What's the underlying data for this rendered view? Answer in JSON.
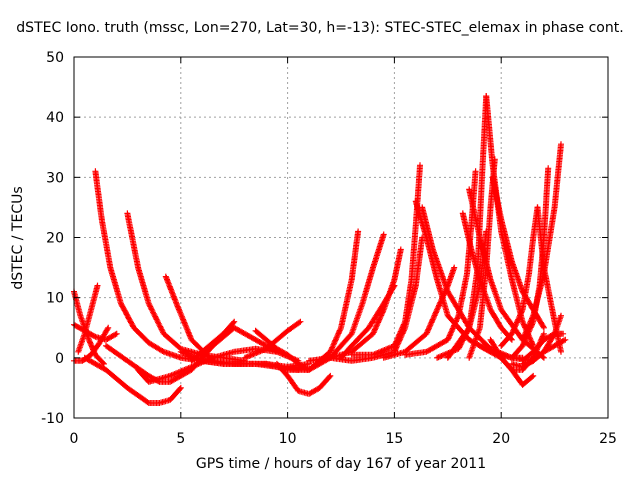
{
  "chart_data": {
    "type": "scatter",
    "title": "dSTEC Iono. truth (mssc, Lon=270, Lat=30, h=-13): STEC-STEC_elemax in phase cont.",
    "xlabel": "GPS time / hours of day 167 of year 2011",
    "ylabel": "dSTEC  / TECUs",
    "xlim": [
      0,
      25
    ],
    "ylim": [
      -10,
      50
    ],
    "xticks": [
      0,
      5,
      10,
      15,
      20,
      25
    ],
    "yticks": [
      -10,
      0,
      10,
      20,
      30,
      40,
      50
    ],
    "grid": true,
    "marker": "+",
    "color": "#ff0000",
    "series": [
      {
        "x": [
          0.0,
          0.3,
          0.7,
          1.0,
          1.4
        ],
        "y": [
          11,
          7,
          3,
          0.5,
          -1
        ]
      },
      {
        "x": [
          0.0,
          0.5,
          1.0,
          1.5,
          2.0
        ],
        "y": [
          5.5,
          4.5,
          3.5,
          3,
          4
        ]
      },
      {
        "x": [
          0.2,
          0.5,
          0.8,
          1.1
        ],
        "y": [
          1,
          4,
          8,
          12
        ]
      },
      {
        "x": [
          0.0,
          0.4,
          0.8,
          1.2,
          1.6
        ],
        "y": [
          -0.5,
          -0.5,
          0.5,
          2.5,
          5
        ]
      },
      {
        "x": [
          1.0,
          1.3,
          1.7,
          2.2,
          2.8,
          3.5,
          4.2,
          5.0,
          6.0,
          7.0,
          8.0,
          9.0
        ],
        "y": [
          31,
          23,
          15,
          9,
          5,
          2.5,
          1,
          0,
          -0.5,
          -1,
          -1,
          -1
        ]
      },
      {
        "x": [
          2.5,
          3.0,
          3.5,
          4.2,
          5.0,
          6.0,
          7.0,
          8.0
        ],
        "y": [
          24,
          15,
          9,
          4,
          1.5,
          0.5,
          0,
          -0.5
        ]
      },
      {
        "x": [
          0.5,
          1.5,
          2.5,
          3.5,
          4.0,
          4.5,
          5.0
        ],
        "y": [
          0,
          -2,
          -5,
          -7.5,
          -7.5,
          -7,
          -5
        ]
      },
      {
        "x": [
          1.5,
          2.5,
          3.5,
          4.0,
          4.5,
          5.5,
          6.5,
          7.5
        ],
        "y": [
          2,
          -0.5,
          -3,
          -4,
          -4,
          -2,
          2,
          6
        ]
      },
      {
        "x": [
          3.0,
          3.5,
          4.5,
          5.5,
          6.5,
          7.5,
          8.5,
          9.5
        ],
        "y": [
          -2,
          -4,
          -3,
          -1.5,
          0,
          1,
          1.5,
          1
        ]
      },
      {
        "x": [
          4.3,
          4.8,
          5.5,
          6.5,
          7.5,
          8.5,
          9.5,
          10.5
        ],
        "y": [
          13.5,
          9,
          3,
          -0.5,
          -1,
          -1,
          -1.5,
          -2
        ]
      },
      {
        "x": [
          5.0,
          6.0,
          7.0,
          8.0,
          9.0,
          10.0,
          11.0
        ],
        "y": [
          1,
          -0.5,
          -1,
          -1,
          -1,
          -1.5,
          -1
        ]
      },
      {
        "x": [
          5.5,
          6.0,
          6.5,
          7.0
        ],
        "y": [
          -0.5,
          1,
          2.5,
          4
        ]
      },
      {
        "x": [
          6.5,
          7.0,
          7.5,
          8.5,
          9.5,
          10.5
        ],
        "y": [
          2,
          3.5,
          5,
          3,
          1,
          -0.5
        ]
      },
      {
        "x": [
          8.5,
          9.0,
          9.5,
          10.0,
          10.5,
          11.0
        ],
        "y": [
          4.5,
          3,
          1.5,
          0.5,
          -1,
          -2
        ]
      },
      {
        "x": [
          8.0,
          9.0,
          9.5,
          10.0,
          10.6
        ],
        "y": [
          0,
          1.5,
          3,
          4.5,
          6
        ]
      },
      {
        "x": [
          9.5,
          10.0,
          10.5,
          11.0,
          11.5,
          12.0
        ],
        "y": [
          -1,
          -3,
          -5.5,
          -6,
          -5,
          -3
        ]
      },
      {
        "x": [
          9.0,
          10.0,
          11.0,
          12.0,
          12.5,
          13.0,
          13.3
        ],
        "y": [
          -1,
          -2,
          -2,
          1,
          5,
          13,
          21
        ]
      },
      {
        "x": [
          10.0,
          11.0,
          12.0,
          13.0,
          13.5,
          14.0,
          14.5
        ],
        "y": [
          -1.5,
          -2,
          0,
          4,
          9,
          15,
          20.5
        ]
      },
      {
        "x": [
          11.0,
          12.0,
          13.0,
          14.0,
          14.5,
          15.0,
          15.3
        ],
        "y": [
          -0.5,
          0,
          1,
          4,
          8,
          13,
          18
        ]
      },
      {
        "x": [
          12.0,
          13.0,
          14.0,
          15.0,
          15.5,
          16.0,
          16.3
        ],
        "y": [
          0,
          -0.5,
          0,
          1,
          5,
          12,
          20
        ]
      },
      {
        "x": [
          12.5,
          13.0,
          13.8,
          14.5,
          15.0
        ],
        "y": [
          0,
          2,
          5,
          9,
          12
        ]
      },
      {
        "x": [
          13.0,
          14.0,
          15.0,
          15.5,
          15.8,
          16.0,
          16.2
        ],
        "y": [
          0.5,
          0.5,
          2,
          6,
          13,
          22,
          32
        ]
      },
      {
        "x": [
          14.5,
          15.5,
          16.5,
          17.0,
          17.5,
          17.8
        ],
        "y": [
          0,
          1,
          4,
          8,
          12,
          15
        ]
      },
      {
        "x": [
          16.0,
          16.5,
          17.0,
          17.5,
          18.5,
          19.5,
          20.5,
          21.0
        ],
        "y": [
          26,
          20,
          13,
          7,
          3,
          1,
          0,
          0
        ]
      },
      {
        "x": [
          16.3,
          16.8,
          17.5,
          18.5,
          19.5,
          20.5,
          21.5
        ],
        "y": [
          25,
          18,
          11,
          5,
          1.5,
          0,
          -0.5
        ]
      },
      {
        "x": [
          15.5,
          16.5,
          17.5,
          18.0,
          18.4,
          18.6,
          18.8
        ],
        "y": [
          0.5,
          1,
          3,
          7,
          14,
          22,
          31
        ]
      },
      {
        "x": [
          18.2,
          18.6,
          19.0,
          19.5,
          20.0,
          20.5
        ],
        "y": [
          24,
          18,
          13,
          8,
          5,
          3
        ]
      },
      {
        "x": [
          18.5,
          19.0,
          19.5,
          20.0,
          21.0,
          22.0
        ],
        "y": [
          28,
          20,
          13,
          8,
          3,
          0
        ]
      },
      {
        "x": [
          17.5,
          18.5,
          19.0,
          19.3
        ],
        "y": [
          0,
          5,
          12,
          21
        ]
      },
      {
        "x": [
          17.0,
          18.0,
          18.5,
          18.9,
          19.1,
          19.3
        ],
        "y": [
          0,
          1.5,
          5,
          15,
          30,
          43.5
        ]
      },
      {
        "x": [
          19.3,
          19.6,
          20.0,
          20.5,
          21.0,
          21.5
        ],
        "y": [
          43.5,
          32,
          21,
          13,
          6,
          2
        ]
      },
      {
        "x": [
          18.5,
          19.0,
          19.3,
          19.5,
          19.7
        ],
        "y": [
          0,
          5,
          15,
          25,
          33
        ]
      },
      {
        "x": [
          19.6,
          20.0,
          20.5,
          21.0,
          21.5,
          22.0
        ],
        "y": [
          30,
          23,
          16,
          11,
          8,
          5
        ]
      },
      {
        "x": [
          19.5,
          20.0,
          20.5,
          21.0,
          21.5
        ],
        "y": [
          3,
          0,
          -2,
          -4.5,
          -3
        ]
      },
      {
        "x": [
          19.0,
          20.0,
          20.5,
          21.0,
          21.5,
          22.0
        ],
        "y": [
          2,
          0,
          -2,
          -2,
          0,
          4
        ]
      },
      {
        "x": [
          20.0,
          20.5,
          21.0,
          21.3,
          21.5,
          21.7
        ],
        "y": [
          2,
          4,
          8,
          14,
          20,
          25
        ]
      },
      {
        "x": [
          21.7,
          22.0,
          22.5,
          22.8
        ],
        "y": [
          25,
          15,
          6,
          1
        ]
      },
      {
        "x": [
          20.5,
          21.0,
          21.5,
          21.8,
          22.0,
          22.2
        ],
        "y": [
          0,
          2,
          6,
          12,
          20,
          31.5
        ]
      },
      {
        "x": [
          21.0,
          21.5,
          22.0,
          22.5,
          22.8
        ],
        "y": [
          3,
          7,
          14,
          25,
          35.5
        ]
      },
      {
        "x": [
          21.0,
          21.5,
          22.0,
          22.5,
          22.8
        ],
        "y": [
          -1,
          -0.5,
          1,
          4,
          7
        ]
      },
      {
        "x": [
          20.5,
          21.0,
          21.5,
          22.0,
          22.5,
          23.0
        ],
        "y": [
          -1,
          -1.5,
          -0.5,
          1,
          2,
          3
        ]
      },
      {
        "x": [
          21.0,
          21.5,
          22.0,
          22.5,
          22.9
        ],
        "y": [
          -0.5,
          1,
          3,
          4,
          4
        ]
      }
    ]
  }
}
